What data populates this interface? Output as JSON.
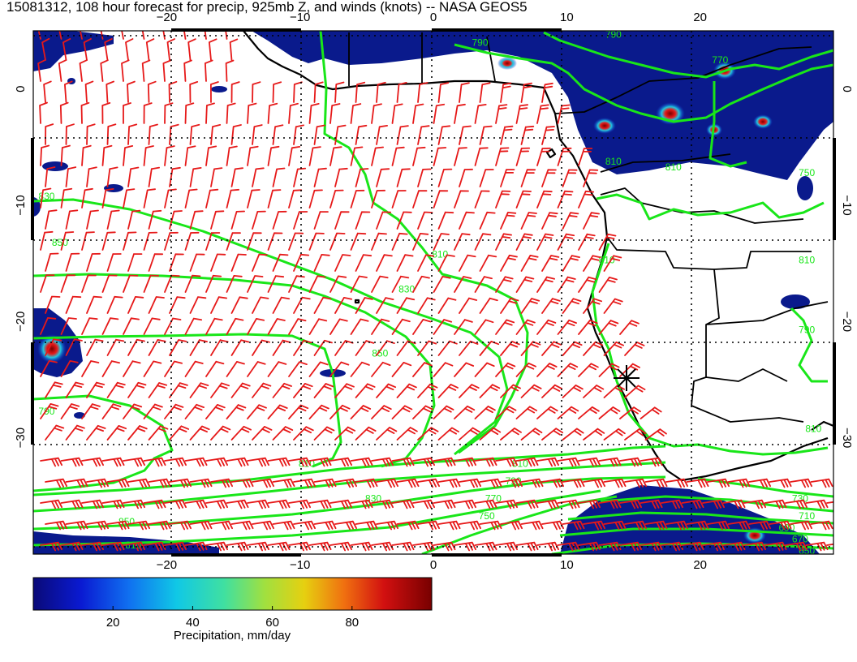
{
  "title": "15081312, 108 hour forecast for precip, 925mb Z, and winds (knots) -- NASA GEOS5",
  "map": {
    "lon_range": [
      -30,
      30
    ],
    "lat_range": [
      -40,
      5
    ],
    "lon_ticks": [
      {
        "value": -20,
        "label": "−20"
      },
      {
        "value": -10,
        "label": "−10"
      },
      {
        "value": 0,
        "label": "0"
      },
      {
        "value": 10,
        "label": "10"
      },
      {
        "value": 20,
        "label": "20"
      }
    ],
    "lat_ticks": [
      {
        "value": 0,
        "label": "0"
      },
      {
        "value": -10,
        "label": "−10"
      },
      {
        "value": -20,
        "label": "−20"
      },
      {
        "value": -30,
        "label": "−30"
      }
    ],
    "grid": "dotted",
    "marker": {
      "lon": 15,
      "lat": -23.5,
      "symbol": "asterisk"
    },
    "colors": {
      "contour": "#19e619",
      "wind_barb": "#e61919",
      "coast": "#000000",
      "precip_low": "#0a1a8c"
    },
    "contour_labels": [
      {
        "text": "830",
        "lon": -29,
        "lat": -9.5
      },
      {
        "text": "850",
        "lon": -28,
        "lat": -13.5
      },
      {
        "text": "790",
        "lon": -29,
        "lat": -28
      },
      {
        "text": "810",
        "lon": 0.5,
        "lat": -14.5
      },
      {
        "text": "830",
        "lon": -2,
        "lat": -17.5
      },
      {
        "text": "850",
        "lon": -4,
        "lat": -23
      },
      {
        "text": "810",
        "lon": -9.5,
        "lat": -32.5
      },
      {
        "text": "830",
        "lon": -4.5,
        "lat": -35.5
      },
      {
        "text": "850",
        "lon": -23,
        "lat": -37.5
      },
      {
        "text": "810",
        "lon": -22.5,
        "lat": -39.5
      },
      {
        "text": "810",
        "lon": 6.5,
        "lat": -32.5
      },
      {
        "text": "790",
        "lon": 6,
        "lat": -34
      },
      {
        "text": "770",
        "lon": 4.5,
        "lat": -35.5
      },
      {
        "text": "750",
        "lon": 4,
        "lat": -37
      },
      {
        "text": "730",
        "lon": 27.5,
        "lat": -35.5
      },
      {
        "text": "710",
        "lon": 28,
        "lat": -37
      },
      {
        "text": "690",
        "lon": 26.5,
        "lat": -38
      },
      {
        "text": "670",
        "lon": 27.5,
        "lat": -39
      },
      {
        "text": "650",
        "lon": 28,
        "lat": -40
      },
      {
        "text": "790",
        "lon": 3.5,
        "lat": 3.7
      },
      {
        "text": "790",
        "lon": 13.5,
        "lat": 4.4
      },
      {
        "text": "770",
        "lon": 21.5,
        "lat": 2.2
      },
      {
        "text": "810",
        "lon": 13.5,
        "lat": -6.5
      },
      {
        "text": "810",
        "lon": 18,
        "lat": -7
      },
      {
        "text": "750",
        "lon": 28,
        "lat": -7.5
      },
      {
        "text": "810",
        "lon": 13,
        "lat": -15
      },
      {
        "text": "810",
        "lon": 28,
        "lat": -15
      },
      {
        "text": "790",
        "lon": 28,
        "lat": -21
      },
      {
        "text": "810",
        "lon": 28.5,
        "lat": -29.5
      }
    ]
  },
  "colorbar": {
    "label": "Precipitation, mm/day",
    "range": [
      0,
      100
    ],
    "ticks": [
      {
        "value": 20,
        "label": "20"
      },
      {
        "value": 40,
        "label": "40"
      },
      {
        "value": 60,
        "label": "60"
      },
      {
        "value": 80,
        "label": "80"
      }
    ]
  }
}
